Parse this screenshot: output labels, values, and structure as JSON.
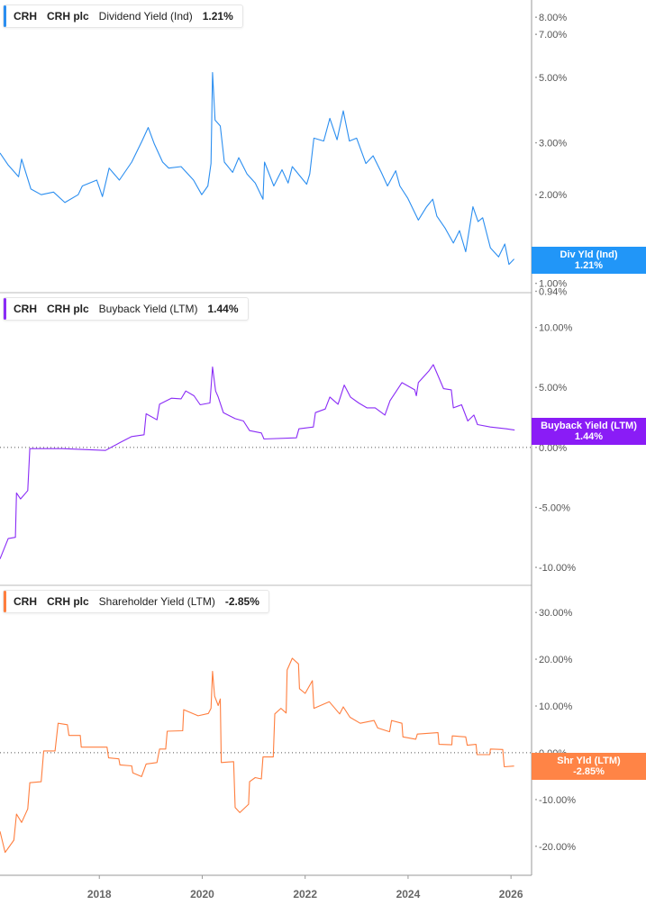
{
  "chart_data": [
    {
      "type": "line",
      "ticker": "CRH",
      "company": "CRH plc",
      "metric": "Dividend Yield (Ind)",
      "current_value": "1.21%",
      "flag_label": "Div Yld (Ind)",
      "color": "#2b8ef0",
      "scale": "log",
      "ylim": [
        0.93,
        9.15
      ],
      "yticks": [
        8,
        7,
        5,
        3,
        2,
        1,
        0.94
      ],
      "ytick_labels": [
        "8.00%",
        "7.00%",
        "5.00%",
        "3.00%",
        "2.00%",
        "1.00%",
        "0.94%"
      ],
      "zero_line": false,
      "points": [
        [
          2016.07,
          2.77
        ],
        [
          2016.23,
          2.52
        ],
        [
          2016.43,
          2.3
        ],
        [
          2016.49,
          2.64
        ],
        [
          2016.67,
          2.09
        ],
        [
          2016.87,
          2.0
        ],
        [
          2017.11,
          2.04
        ],
        [
          2017.33,
          1.88
        ],
        [
          2017.59,
          2.0
        ],
        [
          2017.67,
          2.14
        ],
        [
          2017.95,
          2.24
        ],
        [
          2018.06,
          1.97
        ],
        [
          2018.19,
          2.46
        ],
        [
          2018.39,
          2.24
        ],
        [
          2018.63,
          2.58
        ],
        [
          2018.83,
          3.04
        ],
        [
          2018.95,
          3.38
        ],
        [
          2019.07,
          2.97
        ],
        [
          2019.23,
          2.58
        ],
        [
          2019.35,
          2.46
        ],
        [
          2019.59,
          2.49
        ],
        [
          2019.83,
          2.24
        ],
        [
          2019.99,
          2.0
        ],
        [
          2020.11,
          2.14
        ],
        [
          2020.17,
          2.55
        ],
        [
          2020.2,
          5.19
        ],
        [
          2020.25,
          3.58
        ],
        [
          2020.35,
          3.42
        ],
        [
          2020.43,
          2.58
        ],
        [
          2020.59,
          2.38
        ],
        [
          2020.71,
          2.67
        ],
        [
          2020.87,
          2.35
        ],
        [
          2021.03,
          2.19
        ],
        [
          2021.18,
          1.93
        ],
        [
          2021.21,
          2.58
        ],
        [
          2021.39,
          2.14
        ],
        [
          2021.55,
          2.43
        ],
        [
          2021.67,
          2.19
        ],
        [
          2021.75,
          2.49
        ],
        [
          2022.03,
          2.17
        ],
        [
          2022.09,
          2.35
        ],
        [
          2022.17,
          3.11
        ],
        [
          2022.36,
          3.04
        ],
        [
          2022.48,
          3.63
        ],
        [
          2022.62,
          3.07
        ],
        [
          2022.74,
          3.85
        ],
        [
          2022.86,
          3.04
        ],
        [
          2023.0,
          3.11
        ],
        [
          2023.18,
          2.55
        ],
        [
          2023.32,
          2.71
        ],
        [
          2023.48,
          2.38
        ],
        [
          2023.6,
          2.14
        ],
        [
          2023.76,
          2.41
        ],
        [
          2023.84,
          2.14
        ],
        [
          2023.99,
          1.95
        ],
        [
          2024.2,
          1.64
        ],
        [
          2024.36,
          1.82
        ],
        [
          2024.48,
          1.93
        ],
        [
          2024.56,
          1.69
        ],
        [
          2024.72,
          1.54
        ],
        [
          2024.88,
          1.37
        ],
        [
          2025.0,
          1.51
        ],
        [
          2025.12,
          1.28
        ],
        [
          2025.26,
          1.82
        ],
        [
          2025.36,
          1.62
        ],
        [
          2025.45,
          1.67
        ],
        [
          2025.6,
          1.32
        ],
        [
          2025.76,
          1.23
        ],
        [
          2025.88,
          1.36
        ],
        [
          2025.96,
          1.16
        ],
        [
          2026.06,
          1.21
        ]
      ]
    },
    {
      "type": "line",
      "ticker": "CRH",
      "company": "CRH plc",
      "metric": "Buyback Yield (LTM)",
      "current_value": "1.44%",
      "flag_label": "Buyback Yield (LTM)",
      "color": "#8a2cf6",
      "scale": "linear",
      "ylim": [
        -11.5,
        12.9
      ],
      "yticks": [
        10,
        5,
        0,
        -5,
        -10
      ],
      "ytick_labels": [
        "10.00%",
        "5.00%",
        "0.00%",
        "-5.00%",
        "-10.00%"
      ],
      "zero_line": true,
      "points": [
        [
          2016.07,
          -9.3
        ],
        [
          2016.23,
          -7.6
        ],
        [
          2016.37,
          -7.5
        ],
        [
          2016.39,
          -3.8
        ],
        [
          2016.47,
          -4.3
        ],
        [
          2016.61,
          -3.6
        ],
        [
          2016.65,
          -0.1
        ],
        [
          2017.28,
          -0.1
        ],
        [
          2018.12,
          -0.25
        ],
        [
          2018.4,
          0.4
        ],
        [
          2018.63,
          0.9
        ],
        [
          2018.87,
          1.05
        ],
        [
          2018.91,
          2.8
        ],
        [
          2019.12,
          2.3
        ],
        [
          2019.17,
          3.6
        ],
        [
          2019.4,
          4.1
        ],
        [
          2019.59,
          4.05
        ],
        [
          2019.68,
          4.7
        ],
        [
          2019.84,
          4.3
        ],
        [
          2019.96,
          3.55
        ],
        [
          2020.15,
          3.7
        ],
        [
          2020.2,
          6.7
        ],
        [
          2020.26,
          4.7
        ],
        [
          2020.31,
          4.2
        ],
        [
          2020.41,
          2.9
        ],
        [
          2020.64,
          2.4
        ],
        [
          2020.8,
          2.2
        ],
        [
          2020.92,
          1.4
        ],
        [
          2021.15,
          1.2
        ],
        [
          2021.2,
          0.7
        ],
        [
          2021.83,
          0.8
        ],
        [
          2021.88,
          1.55
        ],
        [
          2022.16,
          1.7
        ],
        [
          2022.2,
          2.9
        ],
        [
          2022.39,
          3.2
        ],
        [
          2022.48,
          4.2
        ],
        [
          2022.64,
          3.6
        ],
        [
          2022.76,
          5.2
        ],
        [
          2022.88,
          4.2
        ],
        [
          2023.04,
          3.7
        ],
        [
          2023.2,
          3.3
        ],
        [
          2023.36,
          3.3
        ],
        [
          2023.55,
          2.7
        ],
        [
          2023.65,
          3.9
        ],
        [
          2023.88,
          5.4
        ],
        [
          2024.13,
          4.8
        ],
        [
          2024.16,
          4.3
        ],
        [
          2024.2,
          5.4
        ],
        [
          2024.41,
          6.4
        ],
        [
          2024.49,
          6.9
        ],
        [
          2024.6,
          5.8
        ],
        [
          2024.69,
          4.9
        ],
        [
          2024.84,
          4.8
        ],
        [
          2024.88,
          3.3
        ],
        [
          2025.04,
          3.55
        ],
        [
          2025.16,
          2.2
        ],
        [
          2025.28,
          2.7
        ],
        [
          2025.35,
          1.9
        ],
        [
          2025.6,
          1.7
        ],
        [
          2025.91,
          1.55
        ],
        [
          2026.07,
          1.44
        ]
      ]
    },
    {
      "type": "line",
      "ticker": "CRH",
      "company": "CRH plc",
      "metric": "Shareholder Yield (LTM)",
      "current_value": "-2.85%",
      "flag_label": "Shr Yld (LTM)",
      "color": "#ff7e3e",
      "scale": "linear",
      "ylim": [
        -26.2,
        35.8
      ],
      "yticks": [
        30,
        20,
        10,
        0,
        -10,
        -20
      ],
      "ytick_labels": [
        "30.00%",
        "20.00%",
        "10.00%",
        "0.00%",
        "-10.00%",
        "-20.00%"
      ],
      "zero_line": true,
      "points": [
        [
          2016.07,
          -16.8
        ],
        [
          2016.17,
          -21.3
        ],
        [
          2016.34,
          -18.7
        ],
        [
          2016.39,
          -13.1
        ],
        [
          2016.49,
          -14.9
        ],
        [
          2016.61,
          -12.0
        ],
        [
          2016.65,
          -6.4
        ],
        [
          2016.87,
          -6.2
        ],
        [
          2016.92,
          0.4
        ],
        [
          2017.14,
          0.4
        ],
        [
          2017.2,
          6.3
        ],
        [
          2017.38,
          6.0
        ],
        [
          2017.41,
          3.7
        ],
        [
          2017.63,
          3.7
        ],
        [
          2017.65,
          1.2
        ],
        [
          2018.15,
          1.2
        ],
        [
          2018.18,
          -1.1
        ],
        [
          2018.38,
          -1.3
        ],
        [
          2018.4,
          -2.6
        ],
        [
          2018.63,
          -2.8
        ],
        [
          2018.65,
          -4.3
        ],
        [
          2018.82,
          -5.1
        ],
        [
          2018.91,
          -2.4
        ],
        [
          2019.12,
          -2.1
        ],
        [
          2019.17,
          0.8
        ],
        [
          2019.29,
          0.8
        ],
        [
          2019.32,
          4.6
        ],
        [
          2019.62,
          4.7
        ],
        [
          2019.64,
          9.2
        ],
        [
          2019.92,
          7.9
        ],
        [
          2020.12,
          8.4
        ],
        [
          2020.17,
          9.5
        ],
        [
          2020.2,
          17.4
        ],
        [
          2020.24,
          12.1
        ],
        [
          2020.31,
          10.1
        ],
        [
          2020.35,
          11.5
        ],
        [
          2020.37,
          -2.1
        ],
        [
          2020.61,
          -1.9
        ],
        [
          2020.64,
          -11.7
        ],
        [
          2020.73,
          -12.8
        ],
        [
          2020.9,
          -11.0
        ],
        [
          2020.92,
          -6.2
        ],
        [
          2021.03,
          -5.3
        ],
        [
          2021.15,
          -5.6
        ],
        [
          2021.18,
          -0.9
        ],
        [
          2021.38,
          -0.9
        ],
        [
          2021.41,
          8.3
        ],
        [
          2021.53,
          9.5
        ],
        [
          2021.63,
          8.5
        ],
        [
          2021.65,
          17.7
        ],
        [
          2021.75,
          20.2
        ],
        [
          2021.87,
          19.0
        ],
        [
          2021.89,
          13.7
        ],
        [
          2022.0,
          12.7
        ],
        [
          2022.14,
          15.4
        ],
        [
          2022.17,
          9.5
        ],
        [
          2022.47,
          10.9
        ],
        [
          2022.67,
          8.3
        ],
        [
          2022.74,
          9.8
        ],
        [
          2022.87,
          7.6
        ],
        [
          2023.07,
          6.3
        ],
        [
          2023.34,
          6.9
        ],
        [
          2023.41,
          5.3
        ],
        [
          2023.64,
          4.5
        ],
        [
          2023.68,
          6.9
        ],
        [
          2023.88,
          6.3
        ],
        [
          2023.9,
          3.4
        ],
        [
          2024.15,
          2.9
        ],
        [
          2024.18,
          4.0
        ],
        [
          2024.58,
          4.3
        ],
        [
          2024.6,
          1.8
        ],
        [
          2024.85,
          1.7
        ],
        [
          2024.86,
          3.6
        ],
        [
          2025.12,
          3.4
        ],
        [
          2025.15,
          1.6
        ],
        [
          2025.32,
          1.8
        ],
        [
          2025.34,
          -0.4
        ],
        [
          2025.59,
          -0.4
        ],
        [
          2025.6,
          0.8
        ],
        [
          2025.84,
          0.7
        ],
        [
          2025.87,
          -3.0
        ],
        [
          2026.06,
          -2.85
        ]
      ]
    }
  ],
  "x_axis": {
    "xlim": [
      2016.07,
      2026.4
    ],
    "ticks": [
      2018,
      2020,
      2022,
      2024,
      2026
    ],
    "tick_labels": [
      "2018",
      "2020",
      "2022",
      "2024",
      "2026"
    ]
  }
}
